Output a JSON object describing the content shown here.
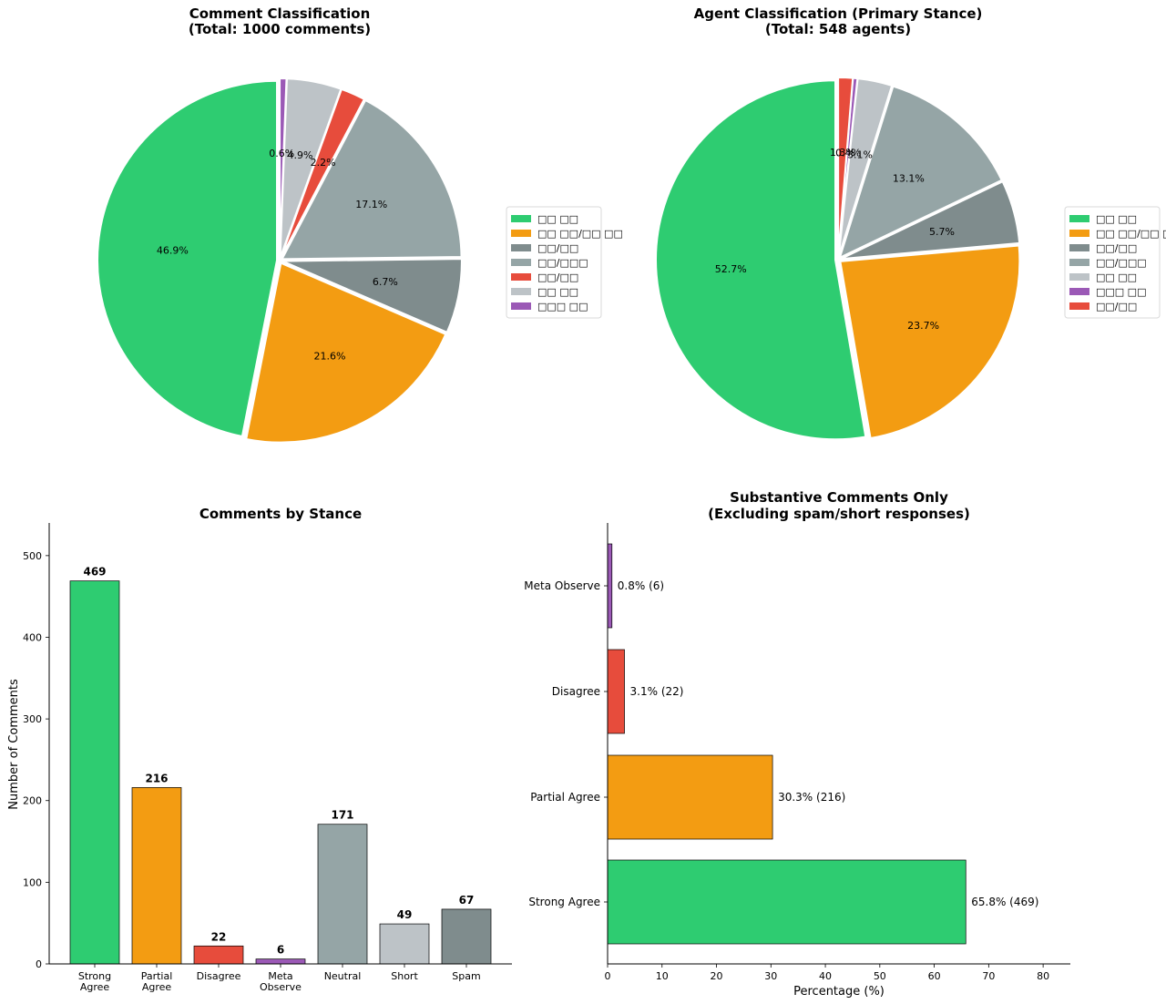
{
  "chart_data": [
    {
      "type": "pie",
      "title": "Comment Classification\n(Total: 1000 comments)",
      "title_lines": [
        "Comment Classification",
        "(Total: 1000 comments)"
      ],
      "start_angle_deg": 90,
      "direction": "counterclockwise",
      "slices": [
        {
          "label": "□□ □□",
          "value": 46.9,
          "pct_label": "46.9%",
          "color": "#2ecc71"
        },
        {
          "label": "□□ □□/□□ □□",
          "value": 21.6,
          "pct_label": "21.6%",
          "color": "#f39c12"
        },
        {
          "label": "□□/□□",
          "value": 6.7,
          "pct_label": "6.7%",
          "color": "#7f8c8d"
        },
        {
          "label": "□□/□□□",
          "value": 17.1,
          "pct_label": "17.1%",
          "color": "#95a5a6"
        },
        {
          "label": "□□/□□",
          "value": 2.2,
          "pct_label": "2.2%",
          "color": "#e74c3c"
        },
        {
          "label": "□□ □□",
          "value": 4.9,
          "pct_label": "4.9%",
          "color": "#bdc3c7"
        },
        {
          "label": "□□□ □□",
          "value": 0.6,
          "pct_label": "0.6%",
          "color": "#9b59b6"
        }
      ],
      "legend": {
        "placement": "right"
      }
    },
    {
      "type": "pie",
      "title": "Agent Classification (Primary Stance)\n(Total: 548 agents)",
      "title_lines": [
        "Agent Classification (Primary Stance)",
        "(Total: 548 agents)"
      ],
      "start_angle_deg": 90,
      "direction": "counterclockwise",
      "slices": [
        {
          "label": "□□ □□",
          "value": 52.7,
          "pct_label": "52.7%",
          "color": "#2ecc71"
        },
        {
          "label": "□□ □□/□□ □□",
          "value": 23.7,
          "pct_label": "23.7%",
          "color": "#f39c12"
        },
        {
          "label": "□□/□□",
          "value": 5.7,
          "pct_label": "5.7%",
          "color": "#7f8c8d"
        },
        {
          "label": "□□/□□□",
          "value": 13.1,
          "pct_label": "13.1%",
          "color": "#95a5a6"
        },
        {
          "label": "□□ □□",
          "value": 3.1,
          "pct_label": "3.1%",
          "color": "#bdc3c7"
        },
        {
          "label": "□□□ □□",
          "value": 0.4,
          "pct_label": "0.4%",
          "color": "#9b59b6"
        },
        {
          "label": "□□/□□",
          "value": 1.3,
          "pct_label": "1.3%",
          "color": "#e74c3c"
        }
      ],
      "legend": {
        "placement": "right"
      }
    },
    {
      "type": "bar",
      "title": "Comments by Stance",
      "xlabel": "",
      "ylabel": "Number of Comments",
      "ylim": [
        0,
        540
      ],
      "yticks": [
        0,
        100,
        200,
        300,
        400,
        500
      ],
      "categories": [
        "Strong\nAgree",
        "Partial\nAgree",
        "Disagree",
        "Meta\nObserve",
        "Neutral",
        "Short",
        "Spam"
      ],
      "category_lines": [
        [
          "Strong",
          "Agree"
        ],
        [
          "Partial",
          "Agree"
        ],
        [
          "Disagree"
        ],
        [
          "Meta",
          "Observe"
        ],
        [
          "Neutral"
        ],
        [
          "Short"
        ],
        [
          "Spam"
        ]
      ],
      "values": [
        469,
        216,
        22,
        6,
        171,
        49,
        67
      ],
      "colors": [
        "#2ecc71",
        "#f39c12",
        "#e74c3c",
        "#9b59b6",
        "#95a5a6",
        "#bdc3c7",
        "#7f8c8d"
      ],
      "grid": false
    },
    {
      "type": "bar",
      "orientation": "horizontal",
      "title": "Substantive Comments Only\n(Excluding spam/short responses)",
      "title_lines": [
        "Substantive Comments Only",
        "(Excluding spam/short responses)"
      ],
      "xlabel": "Percentage (%)",
      "ylabel": "",
      "xlim": [
        0,
        85
      ],
      "xticks": [
        0,
        10,
        20,
        30,
        40,
        50,
        60,
        70,
        80
      ],
      "categories": [
        "Strong Agree",
        "Partial Agree",
        "Disagree",
        "Meta Observe"
      ],
      "values": [
        65.8,
        30.3,
        3.1,
        0.8
      ],
      "counts": [
        469,
        216,
        22,
        6
      ],
      "data_labels": [
        "65.8% (469)",
        "30.3% (216)",
        "3.1% (22)",
        "0.8% (6)"
      ],
      "colors": [
        "#2ecc71",
        "#f39c12",
        "#e74c3c",
        "#9b59b6"
      ],
      "grid": false
    }
  ]
}
